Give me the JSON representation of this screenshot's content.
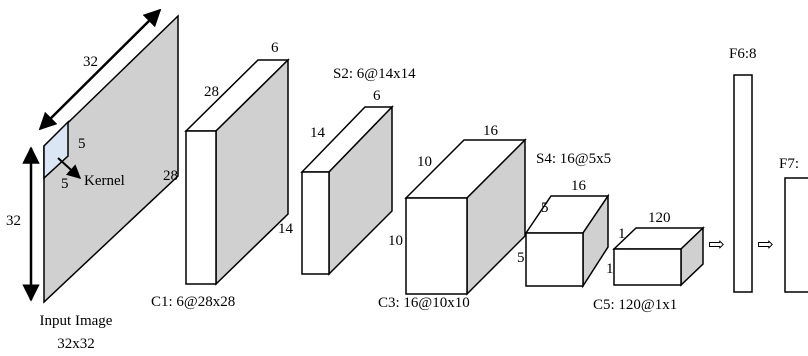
{
  "input": {
    "width_label": "32",
    "height_label": "32",
    "kernel_size_1": "5",
    "kernel_size_2": "5",
    "kernel_label": "Kernel",
    "caption_line1": "Input Image",
    "caption_line2": "32x32"
  },
  "c1": {
    "depth": "6",
    "height": "28",
    "width": "28",
    "caption": "C1: 6@28x28"
  },
  "s2": {
    "caption": "S2: 6@14x14",
    "depth": "6",
    "height": "14",
    "width": "14"
  },
  "c3": {
    "depth": "16",
    "height": "10",
    "width": "10",
    "caption": "C3: 16@10x10"
  },
  "s4": {
    "caption": "S4: 16@5x5",
    "depth": "16",
    "height": "5",
    "width": "5"
  },
  "c5": {
    "depth": "120",
    "height": "1",
    "width": "1",
    "caption": "C5: 120@1x1"
  },
  "f6": {
    "caption": "F6:8"
  },
  "f7": {
    "caption": "F7:"
  },
  "connector": {
    "symbol": "⇨"
  }
}
